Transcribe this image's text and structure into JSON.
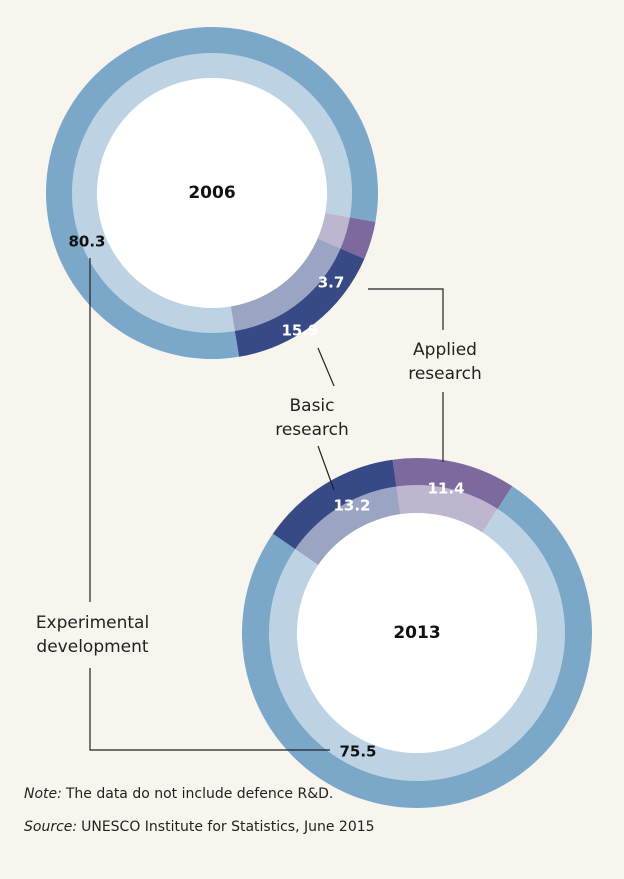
{
  "chart_data": [
    {
      "type": "pie",
      "title": "2006",
      "categories": [
        "Applied research",
        "Basic research",
        "Experimental development"
      ],
      "values": [
        3.7,
        15.9,
        80.3
      ],
      "colors": [
        "#7c6a9e",
        "#374a86",
        "#7ba7c9"
      ]
    },
    {
      "type": "pie",
      "title": "2013",
      "categories": [
        "Applied research",
        "Basic research",
        "Experimental development"
      ],
      "values": [
        11.4,
        13.2,
        75.5
      ],
      "colors": [
        "#7c6a9e",
        "#374a86",
        "#7ba7c9"
      ]
    }
  ],
  "note": {
    "label": "Note:",
    "text": "The data do not include defence R&D."
  },
  "source": {
    "label": "Source:",
    "text": "UNESCO Institute for Statistics, June 2015"
  }
}
